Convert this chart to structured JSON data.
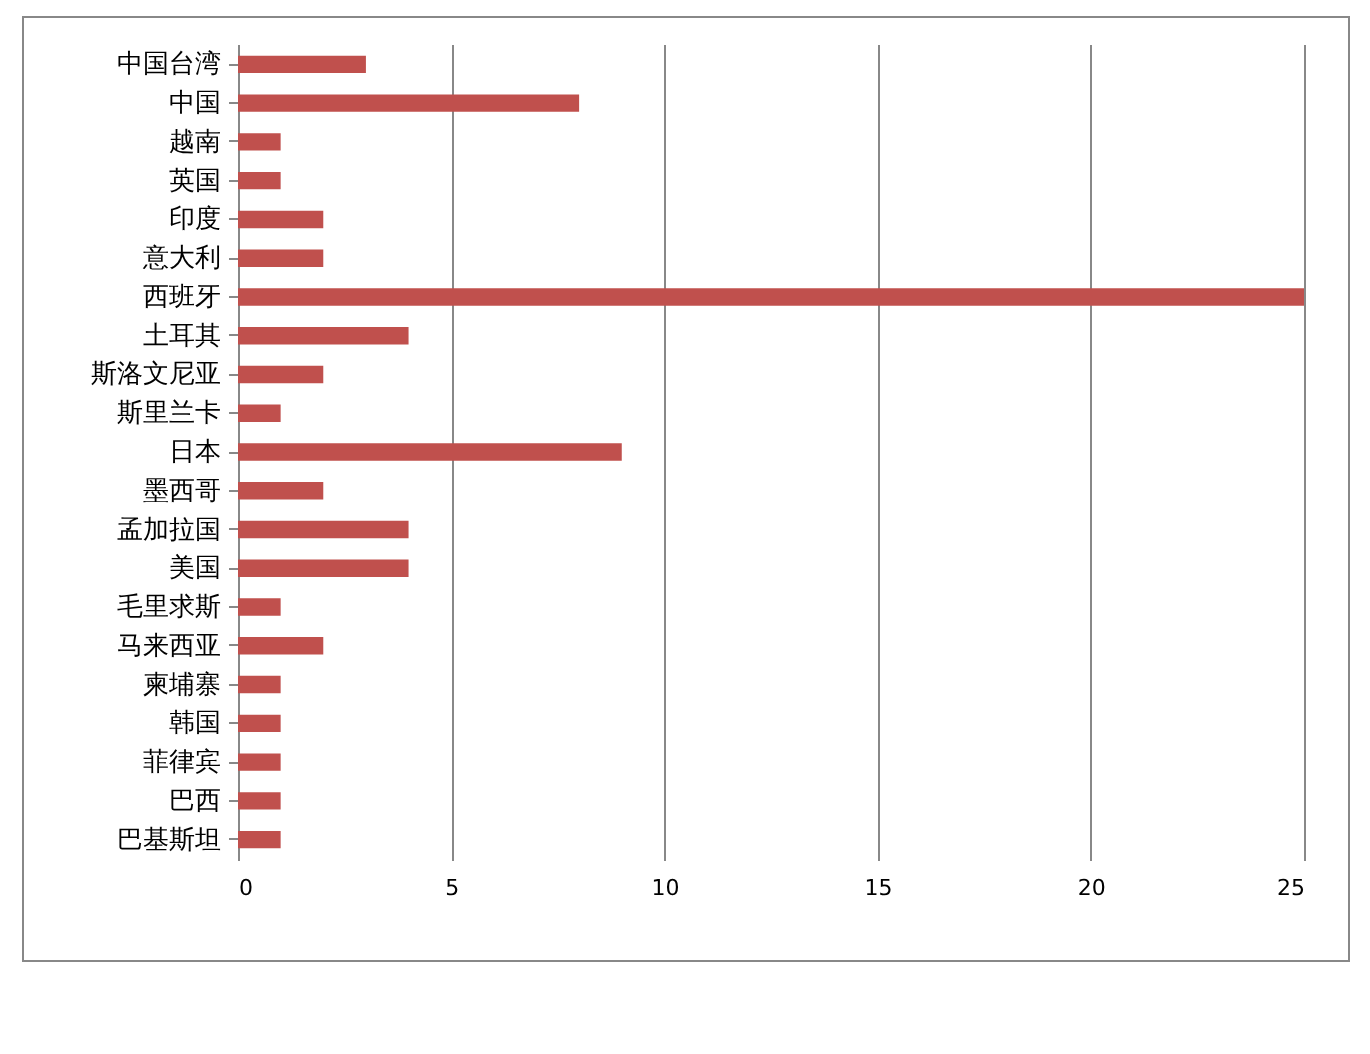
{
  "chart_data": {
    "type": "bar",
    "orientation": "horizontal",
    "categories": [
      "中国台湾",
      "中国",
      "越南",
      "英国",
      "印度",
      "意大利",
      "西班牙",
      "土耳其",
      "斯洛文尼亚",
      "斯里兰卡",
      "日本",
      "墨西哥",
      "孟加拉国",
      "美国",
      "毛里求斯",
      "马来西亚",
      "柬埔寨",
      "韩国",
      "菲律宾",
      "巴西",
      "巴基斯坦"
    ],
    "values": [
      3,
      8,
      1,
      1,
      2,
      2,
      25,
      4,
      2,
      1,
      9,
      2,
      4,
      4,
      1,
      2,
      1,
      1,
      1,
      1,
      1
    ],
    "color": "#c0504d",
    "xlim": [
      0,
      25
    ],
    "xticks": [
      0,
      5,
      10,
      15,
      20,
      25
    ],
    "grid": "x"
  }
}
